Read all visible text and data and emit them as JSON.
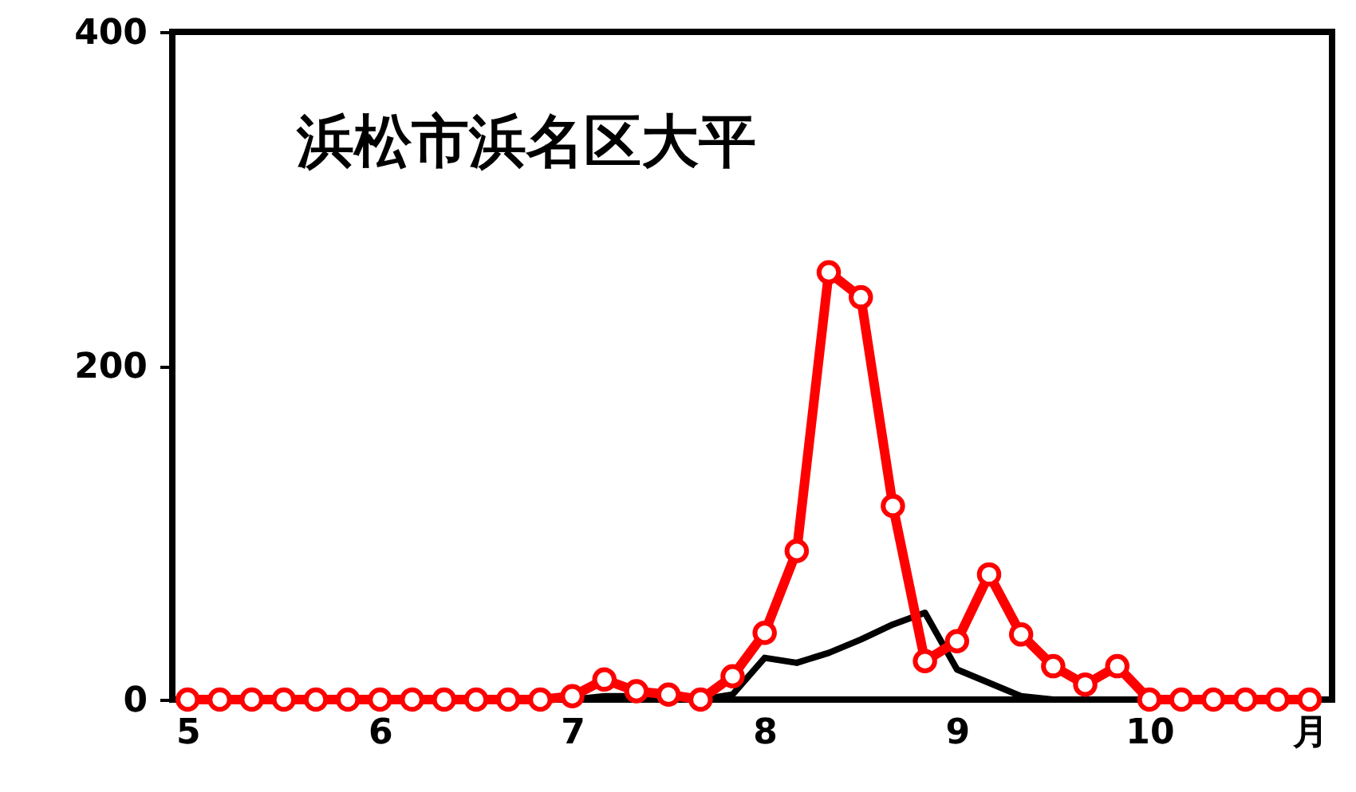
{
  "chart_data": {
    "type": "line",
    "title": "浜松市浜名区大平",
    "x": [
      5,
      5.1667,
      5.3333,
      5.5,
      5.6667,
      5.8333,
      6,
      6.1667,
      6.3333,
      6.5,
      6.6667,
      6.8333,
      7,
      7.1667,
      7.3333,
      7.5,
      7.6667,
      7.8333,
      8,
      8.1667,
      8.3333,
      8.5,
      8.6667,
      8.8333,
      9,
      9.1667,
      9.3333,
      9.5,
      9.6667,
      9.8333,
      10,
      10.1667,
      10.3333,
      10.5,
      10.6667,
      10.8333
    ],
    "xlim": [
      4.92,
      10.95
    ],
    "xticks": [
      5,
      6,
      7,
      8,
      9,
      10,
      {
        "value": 10.8333,
        "label": "月"
      }
    ],
    "ylim": [
      0,
      400
    ],
    "yticks": [
      0,
      200,
      400
    ],
    "grid": false,
    "series": [
      {
        "color": "#000000",
        "marker": "none",
        "values": [
          null,
          null,
          null,
          null,
          null,
          null,
          null,
          null,
          null,
          null,
          null,
          null,
          0,
          2,
          2,
          0,
          0,
          3,
          25,
          22,
          28,
          36,
          45,
          52,
          18,
          10,
          2,
          0,
          0,
          0,
          0,
          0,
          null,
          null,
          null,
          null
        ]
      },
      {
        "color": "#ff0000",
        "marker": "circle",
        "values": [
          0,
          0,
          0,
          0,
          0,
          0,
          0,
          0,
          0,
          0,
          0,
          0,
          2,
          12,
          5,
          3,
          0,
          14,
          40,
          89,
          256,
          241,
          116,
          23,
          35,
          75,
          39,
          20,
          9,
          20,
          0,
          0,
          0,
          0,
          0,
          0
        ]
      }
    ]
  }
}
